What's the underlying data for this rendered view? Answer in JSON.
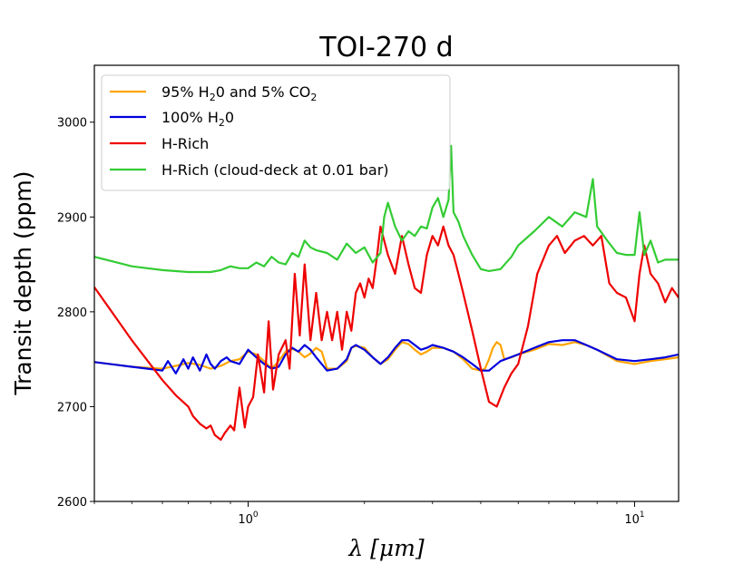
{
  "chart_data": {
    "type": "line",
    "title": "TOI-270 d",
    "ylabel": "Transit depth (ppm)",
    "xlabel": "λ [μm]",
    "xscale": "log",
    "xlim": [
      0.4,
      13
    ],
    "ylim": [
      2600,
      3060
    ],
    "yticks": [
      2600,
      2700,
      2800,
      2900,
      3000
    ],
    "ytick_labels": [
      "2600",
      "2700",
      "2800",
      "2900",
      "3000"
    ],
    "xtick_labels": [
      {
        "value": 1,
        "base": "10",
        "exp": "0"
      },
      {
        "value": 10,
        "base": "10",
        "exp": "1"
      }
    ],
    "legend_position": "upper-left",
    "series": [
      {
        "name": "95% H2O and 5% CO2",
        "label_parts": {
          "a": "95% H",
          "sub1": "2",
          "b": "0 and 5% CO",
          "sub2": "2"
        },
        "color": "#ffa500",
        "x": [
          0.4,
          0.5,
          0.6,
          0.65,
          0.7,
          0.75,
          0.8,
          0.85,
          0.9,
          0.95,
          1.0,
          1.05,
          1.1,
          1.15,
          1.2,
          1.25,
          1.3,
          1.35,
          1.4,
          1.45,
          1.5,
          1.55,
          1.6,
          1.7,
          1.8,
          1.85,
          1.9,
          2.0,
          2.1,
          2.2,
          2.3,
          2.4,
          2.5,
          2.6,
          2.7,
          2.8,
          2.9,
          3.0,
          3.2,
          3.4,
          3.6,
          3.8,
          4.0,
          4.1,
          4.2,
          4.3,
          4.4,
          4.5,
          4.6,
          4.8,
          5.0,
          5.5,
          6.0,
          6.5,
          7.0,
          7.5,
          8.0,
          9.0,
          10.0,
          11.0,
          12.0,
          13.0
        ],
        "y": [
          2747,
          2742,
          2740,
          2743,
          2746,
          2744,
          2740,
          2743,
          2748,
          2750,
          2758,
          2755,
          2748,
          2740,
          2748,
          2758,
          2761,
          2758,
          2752,
          2756,
          2762,
          2758,
          2740,
          2740,
          2748,
          2762,
          2764,
          2762,
          2752,
          2745,
          2750,
          2760,
          2768,
          2766,
          2760,
          2755,
          2758,
          2762,
          2762,
          2758,
          2750,
          2740,
          2738,
          2740,
          2750,
          2762,
          2768,
          2765,
          2750,
          2752,
          2755,
          2760,
          2766,
          2765,
          2768,
          2765,
          2760,
          2748,
          2745,
          2748,
          2750,
          2752
        ]
      },
      {
        "name": "100% H2O",
        "label_parts": {
          "a": "100% H",
          "sub1": "2",
          "b": "0"
        },
        "color": "#0000dd",
        "x": [
          0.4,
          0.5,
          0.55,
          0.6,
          0.62,
          0.65,
          0.68,
          0.7,
          0.72,
          0.75,
          0.78,
          0.8,
          0.82,
          0.85,
          0.88,
          0.9,
          0.95,
          1.0,
          1.05,
          1.1,
          1.15,
          1.2,
          1.25,
          1.3,
          1.35,
          1.4,
          1.45,
          1.5,
          1.6,
          1.7,
          1.8,
          1.85,
          1.9,
          2.0,
          2.1,
          2.2,
          2.3,
          2.4,
          2.5,
          2.6,
          2.7,
          2.8,
          2.9,
          3.0,
          3.2,
          3.4,
          3.6,
          3.8,
          4.0,
          4.2,
          4.5,
          5.0,
          5.5,
          6.0,
          6.5,
          7.0,
          7.5,
          8.0,
          9.0,
          10.0,
          11.0,
          12.0,
          13.0
        ],
        "y": [
          2747,
          2742,
          2740,
          2738,
          2748,
          2735,
          2750,
          2740,
          2752,
          2738,
          2755,
          2745,
          2740,
          2748,
          2752,
          2748,
          2745,
          2760,
          2752,
          2745,
          2740,
          2742,
          2755,
          2762,
          2758,
          2765,
          2760,
          2752,
          2738,
          2740,
          2750,
          2762,
          2765,
          2760,
          2752,
          2745,
          2752,
          2762,
          2770,
          2770,
          2765,
          2760,
          2762,
          2765,
          2762,
          2758,
          2752,
          2745,
          2738,
          2738,
          2748,
          2755,
          2762,
          2768,
          2770,
          2770,
          2765,
          2760,
          2750,
          2748,
          2750,
          2752,
          2755
        ]
      },
      {
        "name": "H-Rich",
        "label_parts": {
          "a": "H-Rich"
        },
        "color": "#ee0000",
        "x": [
          0.4,
          0.5,
          0.6,
          0.65,
          0.7,
          0.72,
          0.75,
          0.78,
          0.8,
          0.82,
          0.85,
          0.87,
          0.9,
          0.92,
          0.95,
          0.98,
          1.0,
          1.03,
          1.06,
          1.1,
          1.13,
          1.16,
          1.2,
          1.25,
          1.28,
          1.32,
          1.36,
          1.4,
          1.45,
          1.5,
          1.55,
          1.6,
          1.65,
          1.7,
          1.75,
          1.8,
          1.85,
          1.9,
          1.95,
          2.0,
          2.05,
          2.1,
          2.15,
          2.2,
          2.3,
          2.4,
          2.5,
          2.6,
          2.7,
          2.8,
          2.9,
          3.0,
          3.1,
          3.2,
          3.3,
          3.4,
          3.5,
          3.6,
          3.8,
          4.0,
          4.2,
          4.4,
          4.6,
          4.8,
          5.0,
          5.3,
          5.6,
          6.0,
          6.3,
          6.6,
          7.0,
          7.4,
          7.8,
          8.2,
          8.6,
          9.0,
          9.5,
          10.0,
          10.3,
          10.6,
          11.0,
          11.5,
          12.0,
          12.5,
          13.0
        ],
        "y": [
          2826,
          2770,
          2728,
          2712,
          2700,
          2690,
          2682,
          2677,
          2680,
          2670,
          2665,
          2672,
          2680,
          2675,
          2720,
          2678,
          2700,
          2710,
          2755,
          2715,
          2790,
          2718,
          2755,
          2770,
          2740,
          2840,
          2775,
          2850,
          2770,
          2820,
          2770,
          2800,
          2770,
          2800,
          2760,
          2800,
          2780,
          2820,
          2830,
          2815,
          2835,
          2825,
          2855,
          2890,
          2860,
          2840,
          2880,
          2850,
          2825,
          2820,
          2860,
          2880,
          2870,
          2890,
          2870,
          2860,
          2840,
          2820,
          2780,
          2740,
          2705,
          2700,
          2720,
          2735,
          2745,
          2785,
          2840,
          2870,
          2880,
          2862,
          2875,
          2880,
          2870,
          2880,
          2830,
          2820,
          2815,
          2790,
          2840,
          2870,
          2840,
          2830,
          2810,
          2825,
          2815
        ]
      },
      {
        "name": "H-Rich (cloud-deck at 0.01 bar)",
        "label_parts": {
          "a": "H-Rich (cloud-deck at 0.01 bar)"
        },
        "color": "#33cc33",
        "x": [
          0.4,
          0.5,
          0.6,
          0.7,
          0.8,
          0.85,
          0.9,
          0.95,
          1.0,
          1.05,
          1.1,
          1.15,
          1.2,
          1.25,
          1.3,
          1.35,
          1.4,
          1.45,
          1.5,
          1.6,
          1.7,
          1.8,
          1.9,
          2.0,
          2.1,
          2.2,
          2.25,
          2.3,
          2.4,
          2.5,
          2.6,
          2.7,
          2.8,
          2.9,
          3.0,
          3.1,
          3.2,
          3.3,
          3.35,
          3.4,
          3.5,
          3.6,
          3.7,
          3.8,
          4.0,
          4.2,
          4.5,
          4.8,
          5.0,
          5.5,
          6.0,
          6.5,
          7.0,
          7.5,
          7.8,
          8.0,
          8.5,
          9.0,
          9.5,
          10.0,
          10.3,
          10.6,
          11.0,
          11.5,
          12.0,
          13.0
        ],
        "y": [
          2858,
          2848,
          2844,
          2842,
          2842,
          2844,
          2848,
          2846,
          2846,
          2852,
          2848,
          2858,
          2852,
          2850,
          2862,
          2858,
          2875,
          2868,
          2865,
          2862,
          2855,
          2872,
          2862,
          2868,
          2852,
          2862,
          2900,
          2915,
          2890,
          2875,
          2885,
          2880,
          2890,
          2888,
          2910,
          2920,
          2900,
          2918,
          2975,
          2905,
          2895,
          2880,
          2870,
          2860,
          2845,
          2843,
          2845,
          2858,
          2870,
          2885,
          2900,
          2890,
          2905,
          2900,
          2940,
          2890,
          2875,
          2862,
          2860,
          2860,
          2905,
          2860,
          2875,
          2852,
          2855,
          2855
        ]
      }
    ]
  }
}
